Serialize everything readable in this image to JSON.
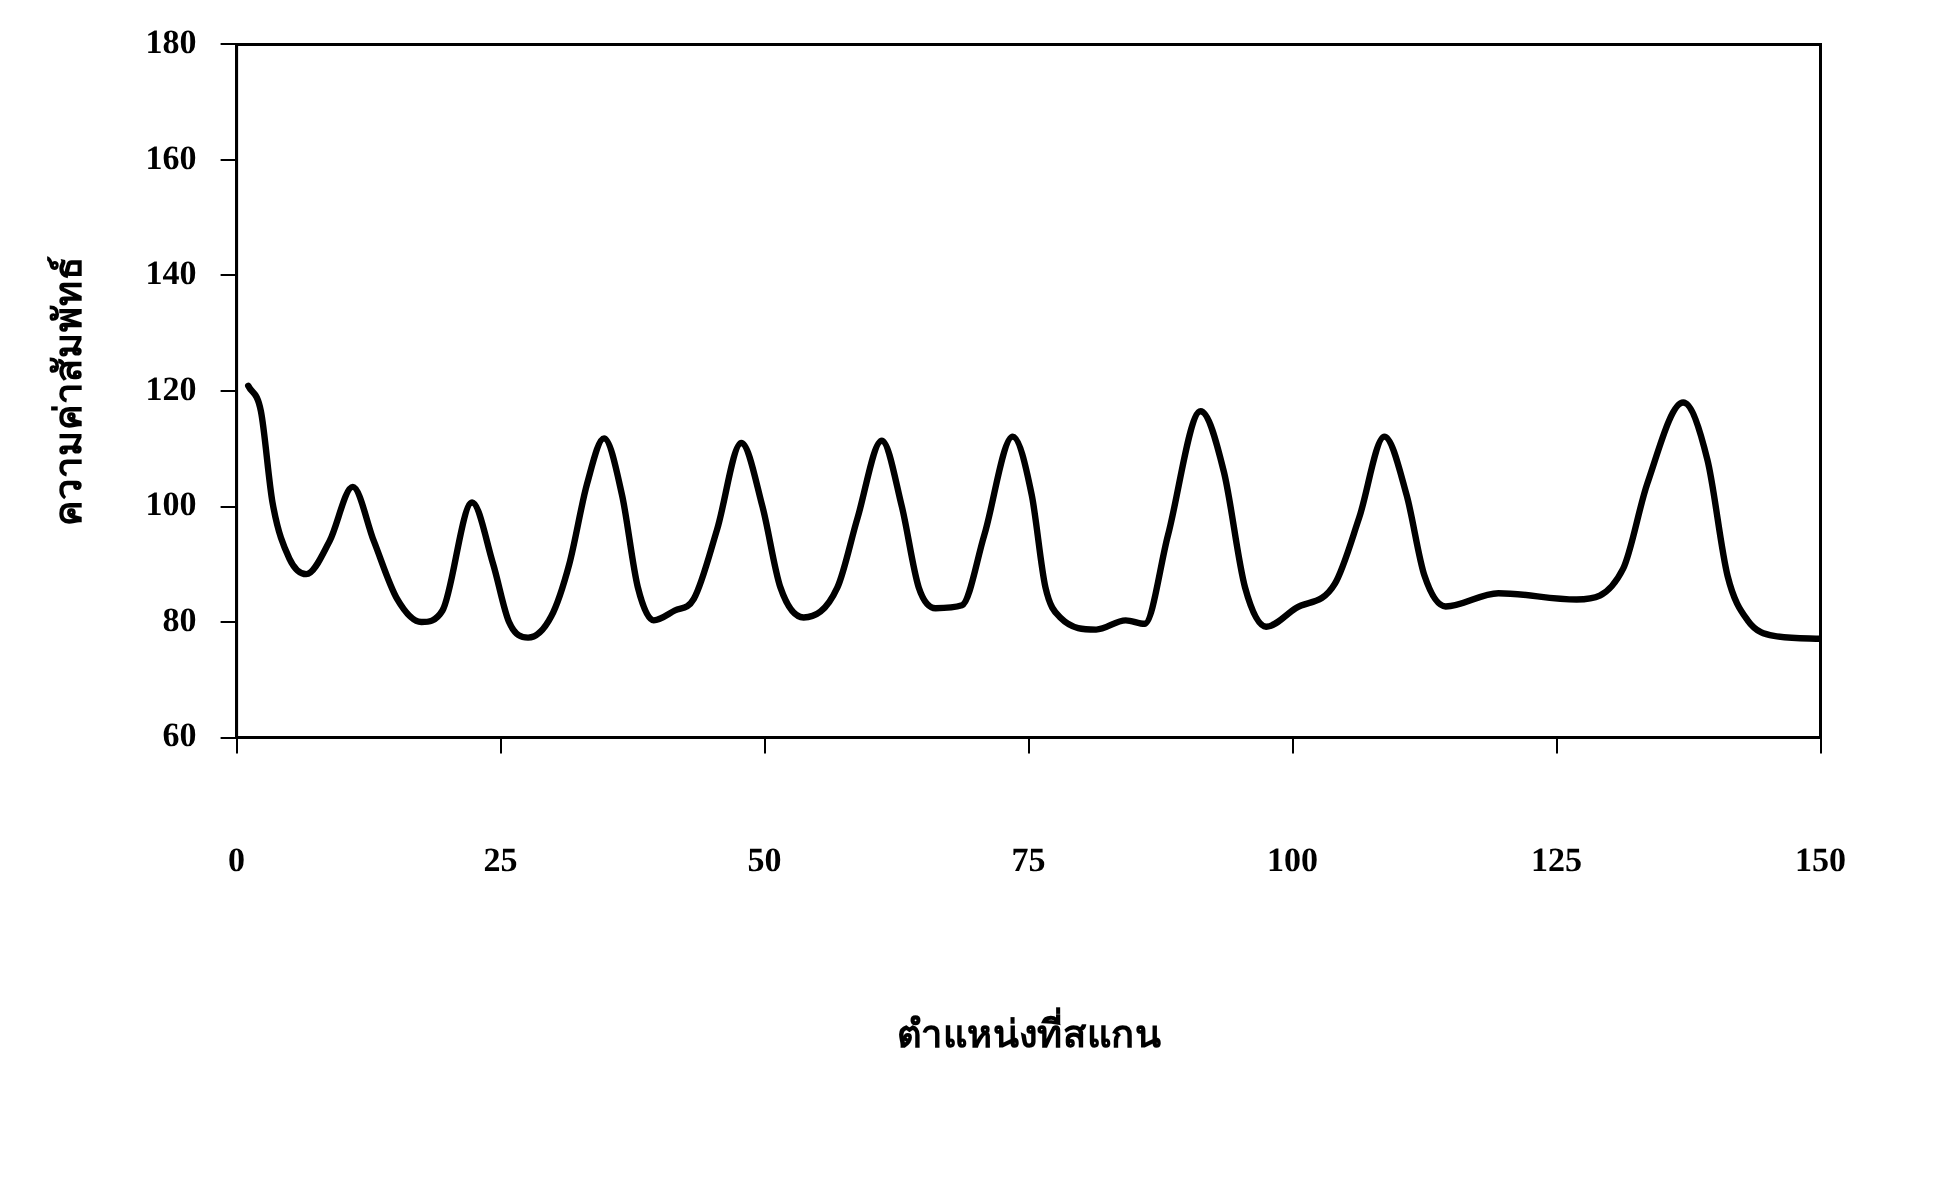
{
  "chart_data": {
    "type": "line",
    "xlabel": "ตำแหน่งที่สแกน",
    "ylabel": "ความค่าสัมพัทธ์",
    "xlim": [
      0,
      150
    ],
    "xticks": [
      0,
      25,
      50,
      75,
      100,
      125,
      150
    ],
    "ylim": [
      60,
      180
    ],
    "yticks": [
      60,
      80,
      100,
      120,
      140,
      160,
      180
    ],
    "grid": false,
    "legend": false,
    "marker": "none",
    "line_style": "solid",
    "series": [
      {
        "color": "#000000",
        "x": [
          1.1,
          2.3,
          3.4,
          5,
          6.6,
          8.8,
          11,
          13,
          15.2,
          17.5,
          19.5,
          22.3,
          24.3,
          25.8,
          27.6,
          29.8,
          31.5,
          33.2,
          34.8,
          36.5,
          38,
          39.5,
          41.5,
          43.3,
          45.5,
          47.8,
          49.8,
          51.5,
          53.7,
          56.9,
          58.8,
          61.1,
          63,
          64.6,
          66.2,
          68.7,
          70.8,
          73.5,
          75.3,
          76.6,
          78,
          81.4,
          84.2,
          86,
          88.2,
          91.3,
          93.5,
          95.5,
          97.5,
          100.3,
          104,
          106.3,
          108.7,
          110.8,
          112.5,
          114.5,
          119.5,
          126.9,
          131.3,
          133.6,
          137,
          139.3,
          141.2,
          143.1,
          145.6,
          150
        ],
        "values": [
          120.9,
          116.5,
          100.7,
          91,
          88.3,
          94,
          103.4,
          94,
          84,
          80,
          82,
          100.7,
          90,
          80,
          77.3,
          81,
          90,
          104,
          111.8,
          102,
          86,
          80.3,
          82,
          84,
          96,
          111,
          100,
          86,
          80.8,
          86,
          98,
          111.4,
          100,
          86,
          82.4,
          82.9,
          95,
          112.1,
          102,
          86,
          80.8,
          78.7,
          80.3,
          79.7,
          95,
          116.5,
          106,
          86,
          79.2,
          82.4,
          86.6,
          98,
          112.1,
          102,
          88,
          82.7,
          85,
          83.9,
          89.2,
          104,
          118,
          108,
          88,
          80.3,
          77.6,
          77.1
        ]
      }
    ]
  }
}
